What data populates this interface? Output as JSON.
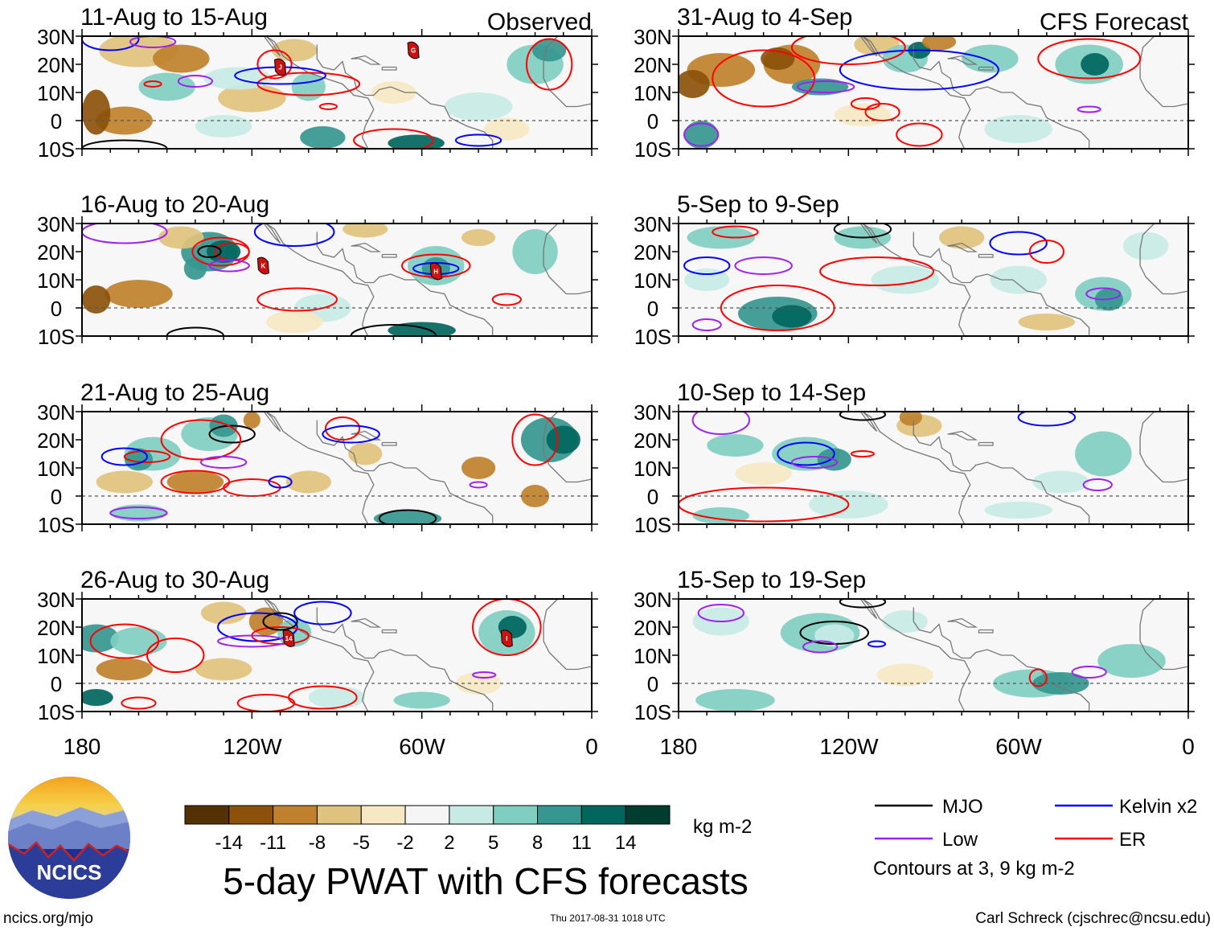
{
  "observed_label": "Observed",
  "forecast_label": "CFS Forecast",
  "panels": [
    {
      "title": "11-Aug to 15-Aug",
      "source": "observed"
    },
    {
      "title": "16-Aug to 20-Aug",
      "source": "observed"
    },
    {
      "title": "21-Aug to 25-Aug",
      "source": "observed"
    },
    {
      "title": "26-Aug to 30-Aug",
      "source": "observed"
    },
    {
      "title": "31-Aug to 4-Sep",
      "source": "forecast"
    },
    {
      "title": "5-Sep to 9-Sep",
      "source": "forecast"
    },
    {
      "title": "10-Sep to 14-Sep",
      "source": "forecast"
    },
    {
      "title": "15-Sep to 19-Sep",
      "source": "forecast"
    }
  ],
  "lat_labels": [
    "30N",
    "20N",
    "10N",
    "0",
    "10S"
  ],
  "lon_labels": [
    "180",
    "120W",
    "60W",
    "0"
  ],
  "colorbar": {
    "tick_labels": [
      "-14",
      "-11",
      "-8",
      "-5",
      "-2",
      "2",
      "5",
      "8",
      "11",
      "14"
    ],
    "colors": [
      "#543005",
      "#8c510a",
      "#bf812d",
      "#dfc27d",
      "#f6e8c3",
      "#f5f5f5",
      "#c7eae5",
      "#80cdc1",
      "#35978f",
      "#01665e",
      "#003c30"
    ],
    "units": "kg m-2"
  },
  "title": "5-day PWAT with CFS forecasts",
  "legend": {
    "items": [
      {
        "label": "MJO",
        "color": "#000000"
      },
      {
        "label": "Kelvin x2",
        "color": "#0000ff"
      },
      {
        "label": "Low",
        "color": "#a020f0"
      },
      {
        "label": "ER",
        "color": "#ff0000"
      }
    ],
    "note": "Contours at 3, 9 kg m-2"
  },
  "logo_text": "NCICS",
  "footer": {
    "left": "ncics.org/mjo",
    "center": "Thu 2017-08-31 1018 UTC",
    "right": "Carl Schreck (cjschrec@ncsu.edu)"
  },
  "storm_markers": [
    {
      "panel": 0,
      "label": "J"
    },
    {
      "panel": 0,
      "label": "G"
    },
    {
      "panel": 1,
      "label": "K"
    },
    {
      "panel": 1,
      "label": "H"
    },
    {
      "panel": 3,
      "label": "14"
    },
    {
      "panel": 3,
      "label": "I"
    }
  ]
}
